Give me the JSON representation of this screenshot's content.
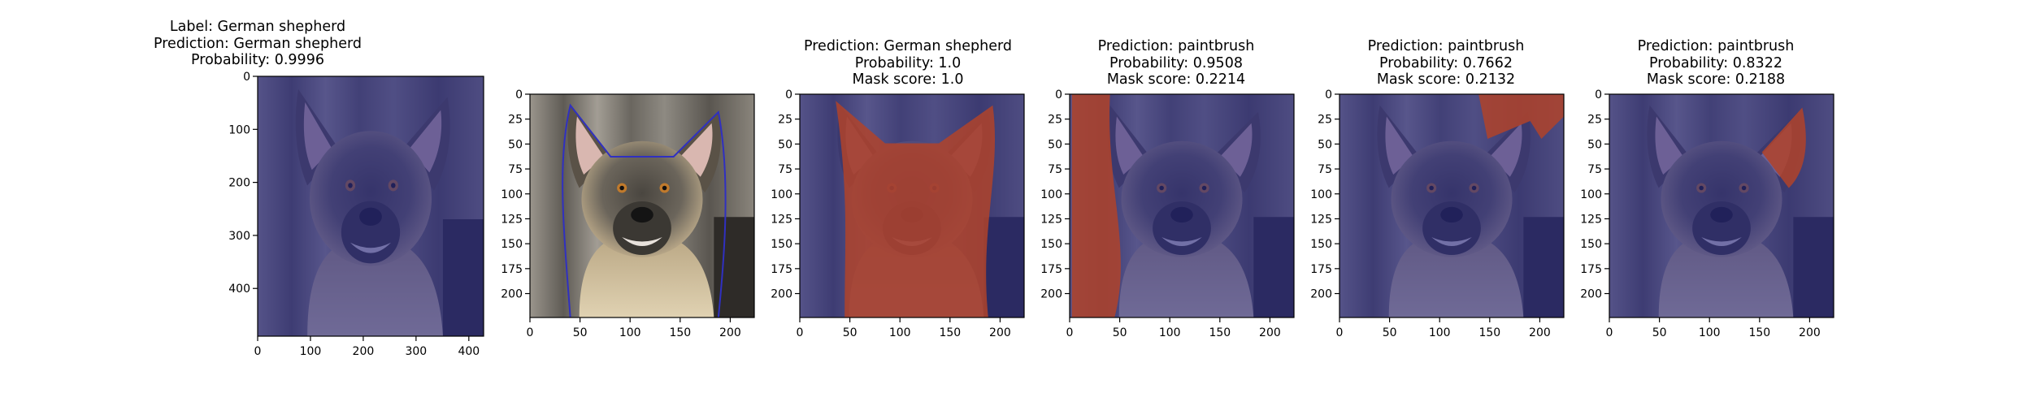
{
  "panels": [
    {
      "title_lines": [
        "Label: German shepherd",
        "Prediction: German shepherd",
        "Probability: 0.9996"
      ],
      "x_ticks": [
        "0",
        "100",
        "200",
        "300",
        "400"
      ],
      "y_ticks": [
        "0",
        "100",
        "200",
        "300",
        "400"
      ],
      "image": "dog-original",
      "overlay": "none"
    },
    {
      "title_lines": [],
      "x_ticks": [
        "0",
        "50",
        "100",
        "150",
        "200"
      ],
      "y_ticks": [
        "0",
        "25",
        "50",
        "75",
        "100",
        "125",
        "150",
        "175",
        "200"
      ],
      "image": "dog-resized-contour",
      "overlay": "contour"
    },
    {
      "title_lines": [
        "Prediction: German shepherd",
        "Probability: 1.0",
        "Mask score: 1.0"
      ],
      "x_ticks": [
        "0",
        "50",
        "100",
        "150",
        "200"
      ],
      "y_ticks": [
        "0",
        "25",
        "50",
        "75",
        "100",
        "125",
        "150",
        "175",
        "200"
      ],
      "image": "dog-mask-full",
      "overlay": "dog-red"
    },
    {
      "title_lines": [
        "Prediction: paintbrush",
        "Probability: 0.9508",
        "Mask score: 0.2214"
      ],
      "x_ticks": [
        "0",
        "50",
        "100",
        "150",
        "200"
      ],
      "y_ticks": [
        "0",
        "25",
        "50",
        "75",
        "100",
        "125",
        "150",
        "175",
        "200"
      ],
      "image": "dog-mask-left",
      "overlay": "left-red"
    },
    {
      "title_lines": [
        "Prediction: paintbrush",
        "Probability: 0.7662",
        "Mask score: 0.2132"
      ],
      "x_ticks": [
        "0",
        "50",
        "100",
        "150",
        "200"
      ],
      "y_ticks": [
        "0",
        "25",
        "50",
        "75",
        "100",
        "125",
        "150",
        "175",
        "200"
      ],
      "image": "dog-mask-topright",
      "overlay": "topright-red"
    },
    {
      "title_lines": [
        "Prediction: paintbrush",
        "Probability: 0.8322",
        "Mask score: 0.2188"
      ],
      "x_ticks": [
        "0",
        "50",
        "100",
        "150",
        "200"
      ],
      "y_ticks": [
        "0",
        "25",
        "50",
        "75",
        "100",
        "125",
        "150",
        "175",
        "200"
      ],
      "image": "dog-mask-ear",
      "overlay": "ear-red"
    }
  ],
  "colors": {
    "mask_blue": "#2a2a86",
    "mask_red": "#b0432a",
    "fur_dark": "#3b3833",
    "fur_light": "#c9b591",
    "wood": "#8a857c"
  }
}
